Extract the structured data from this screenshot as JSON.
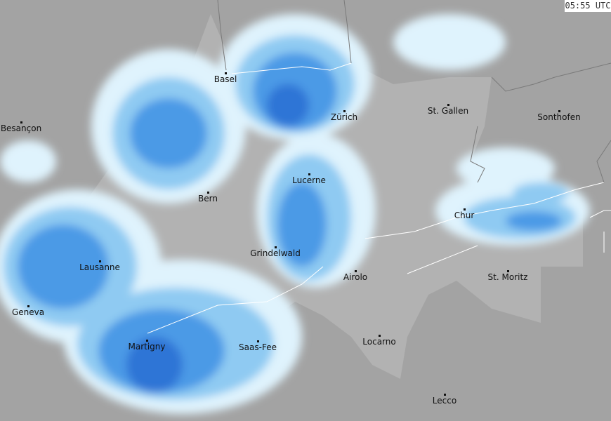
{
  "map": {
    "type": "weather-radar",
    "timestamp": "05:55 UTC",
    "colors": {
      "background": "#a3a3a3",
      "country": "#b2b2b2",
      "rain_light": "#dff3fd",
      "rain_medium": "#8fcaf2",
      "rain_heavy": "#4b9ae6",
      "rain_very_heavy": "#2f74d6",
      "border": "#ffffff"
    },
    "cities": [
      {
        "name": "Basel"
      },
      {
        "name": "Zürich"
      },
      {
        "name": "St. Gallen"
      },
      {
        "name": "Sonthofen"
      },
      {
        "name": "Besançon"
      },
      {
        "name": "Lucerne"
      },
      {
        "name": "Bern"
      },
      {
        "name": "Chur"
      },
      {
        "name": "Grindelwald"
      },
      {
        "name": "Lausanne"
      },
      {
        "name": "Airolo"
      },
      {
        "name": "St. Moritz"
      },
      {
        "name": "Geneva"
      },
      {
        "name": "Martigny"
      },
      {
        "name": "Saas-Fee"
      },
      {
        "name": "Locarno"
      },
      {
        "name": "Lecco"
      }
    ]
  }
}
